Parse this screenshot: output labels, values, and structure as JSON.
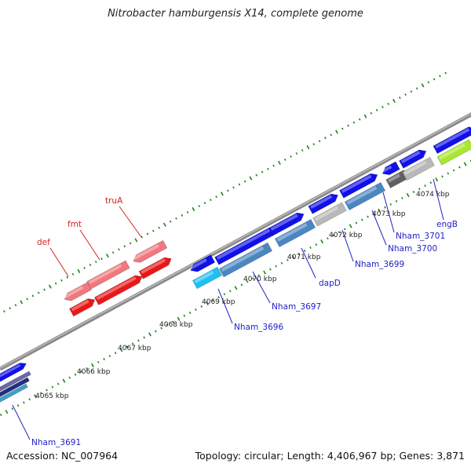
{
  "title": "Nitrobacter hamburgensis X14, complete genome",
  "footer": {
    "accession": "Accession: NC_007964",
    "topology": "Topology: circular; Length: 4,406,967 bp; Genes: 3,871"
  },
  "ruler_labels": [
    "4065 kbp",
    "4066 kbp",
    "4067 kbp",
    "4068 kbp",
    "4069 kbp",
    "4070 kbp",
    "4071 kbp",
    "4072 kbp",
    "4073 kbp",
    "4074 kbp"
  ],
  "gene_labels": [
    {
      "text": "def",
      "color": "#d42020"
    },
    {
      "text": "fmt",
      "color": "#d42020"
    },
    {
      "text": "truA",
      "color": "#d42020"
    },
    {
      "text": "Nham_3691",
      "color": "#2020c8"
    },
    {
      "text": "Nham_3696",
      "color": "#2020c8"
    },
    {
      "text": "Nham_3697",
      "color": "#2020c8"
    },
    {
      "text": "dapD",
      "color": "#2020c8"
    },
    {
      "text": "Nham_3699",
      "color": "#2020c8"
    },
    {
      "text": "Nham_3700",
      "color": "#2020c8"
    },
    {
      "text": "Nham_3701",
      "color": "#2020c8"
    },
    {
      "text": "engB",
      "color": "#2020c8"
    }
  ],
  "colors": {
    "strand_blue": "#1010e8",
    "steel_blue": "#4a86c0",
    "light_red": "#f0787e",
    "red": "#e81818",
    "grey": "#b8b8b8",
    "dark_grey": "#606060",
    "cyan": "#20c0f0",
    "lime": "#a8e830",
    "backbone": "#8a8a8a",
    "tick_green": "#208020"
  }
}
